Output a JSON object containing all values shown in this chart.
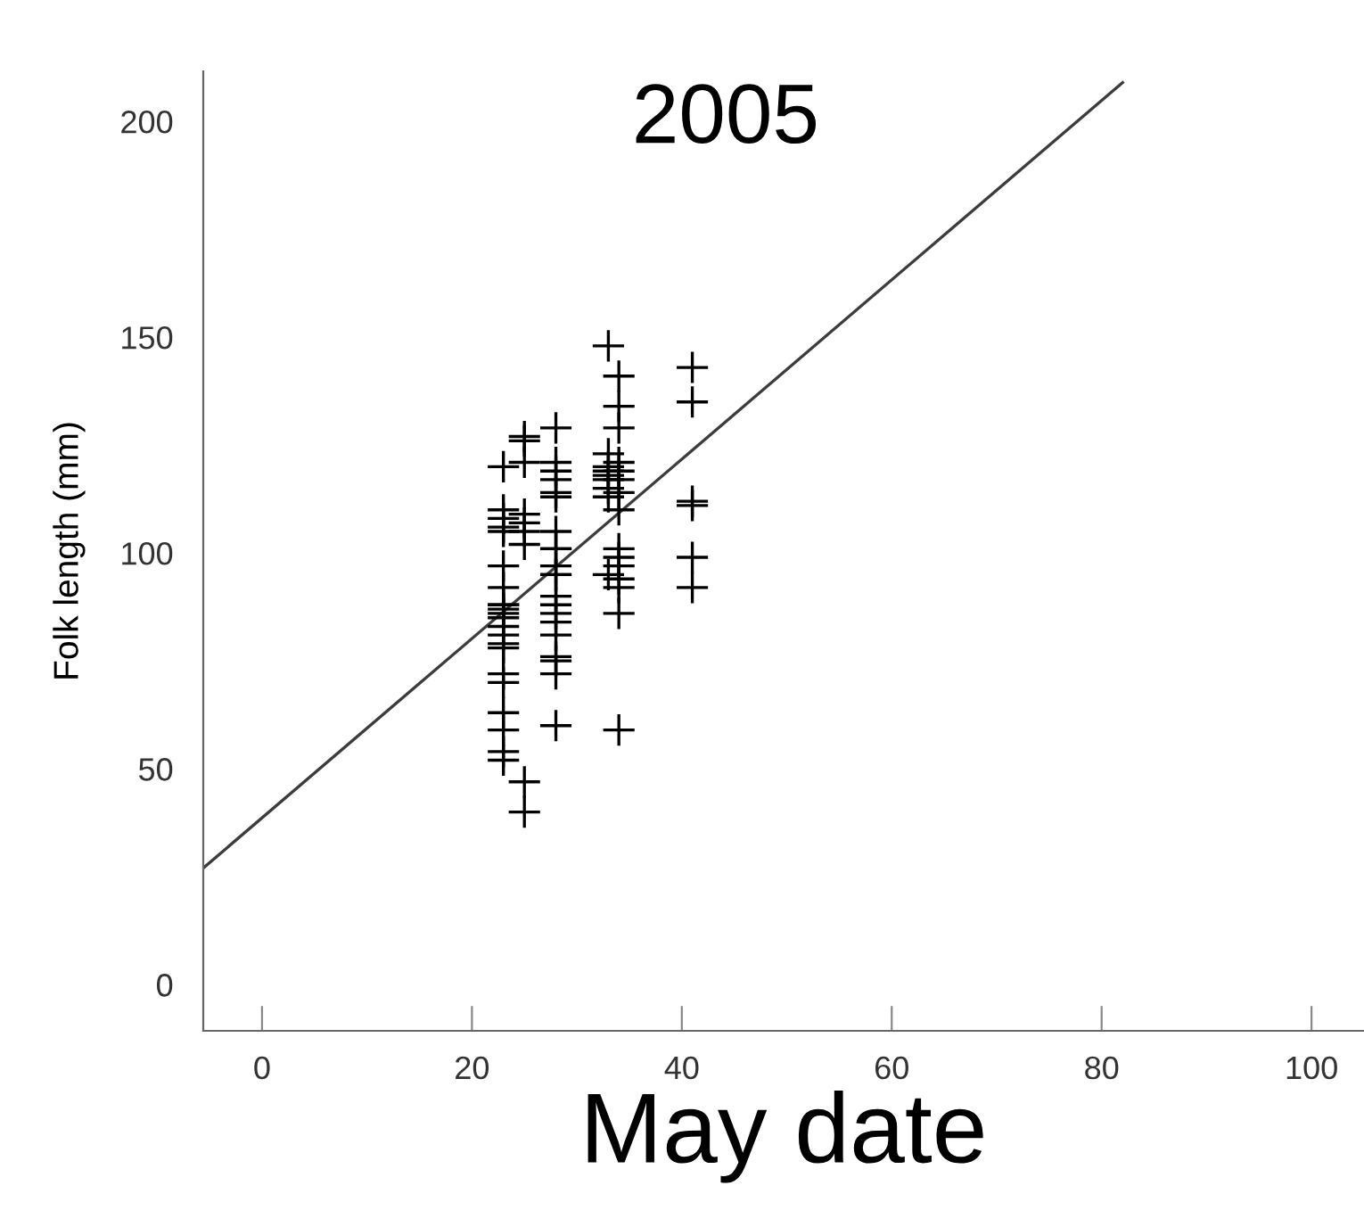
{
  "chart_data": {
    "type": "scatter",
    "title": "2005",
    "xlabel": "May date",
    "ylabel": "Folk length (mm)",
    "xlim": [
      -5.6,
      105
    ],
    "ylim": [
      -10.7,
      211.6
    ],
    "xticks": [
      0,
      20,
      40,
      60,
      80,
      100
    ],
    "yticks": [
      0,
      50,
      100,
      150,
      200
    ],
    "grid": false,
    "legend": false,
    "marker": "cross",
    "series": [
      {
        "color": "#000000",
        "x": [
          23,
          23,
          23,
          23,
          23,
          23,
          23,
          23,
          23,
          23,
          23,
          23,
          23,
          23,
          23,
          23,
          23,
          23,
          23,
          23,
          23,
          23,
          25,
          25,
          25,
          25,
          25,
          25,
          25,
          25,
          25,
          28,
          28,
          28,
          28,
          28,
          28,
          28,
          28,
          28,
          28,
          28,
          28,
          28,
          28,
          28,
          28,
          28,
          28,
          28,
          28,
          28,
          33,
          33,
          33,
          33,
          33,
          33,
          33,
          33,
          33,
          34,
          34,
          34,
          34,
          34,
          34,
          34,
          34,
          34,
          34,
          34,
          34,
          34,
          34,
          34,
          41,
          41,
          41,
          41,
          41,
          41
        ],
        "values": [
          120,
          110,
          108,
          106,
          105,
          97,
          92,
          88,
          88,
          87,
          86,
          85,
          83,
          81,
          79,
          78,
          72,
          70,
          63,
          59,
          54,
          52,
          127,
          126,
          121,
          109,
          107,
          105,
          102,
          47,
          40,
          129,
          121,
          119,
          117,
          114,
          113,
          105,
          101,
          101,
          97,
          95,
          95,
          90,
          88,
          86,
          84,
          81,
          76,
          75,
          72,
          60,
          148,
          123,
          120,
          119,
          118,
          117,
          115,
          113,
          95,
          141,
          134,
          129,
          121,
          119,
          117,
          114,
          110,
          101,
          99,
          97,
          94,
          92,
          86,
          59,
          143,
          135,
          112,
          111,
          99,
          92
        ]
      },
      {
        "type": "line",
        "color": "#3c3c3c",
        "marker": "none",
        "line_style": "solid",
        "x": [
          -5.6,
          82
        ],
        "values": [
          27,
          209
        ]
      }
    ]
  }
}
